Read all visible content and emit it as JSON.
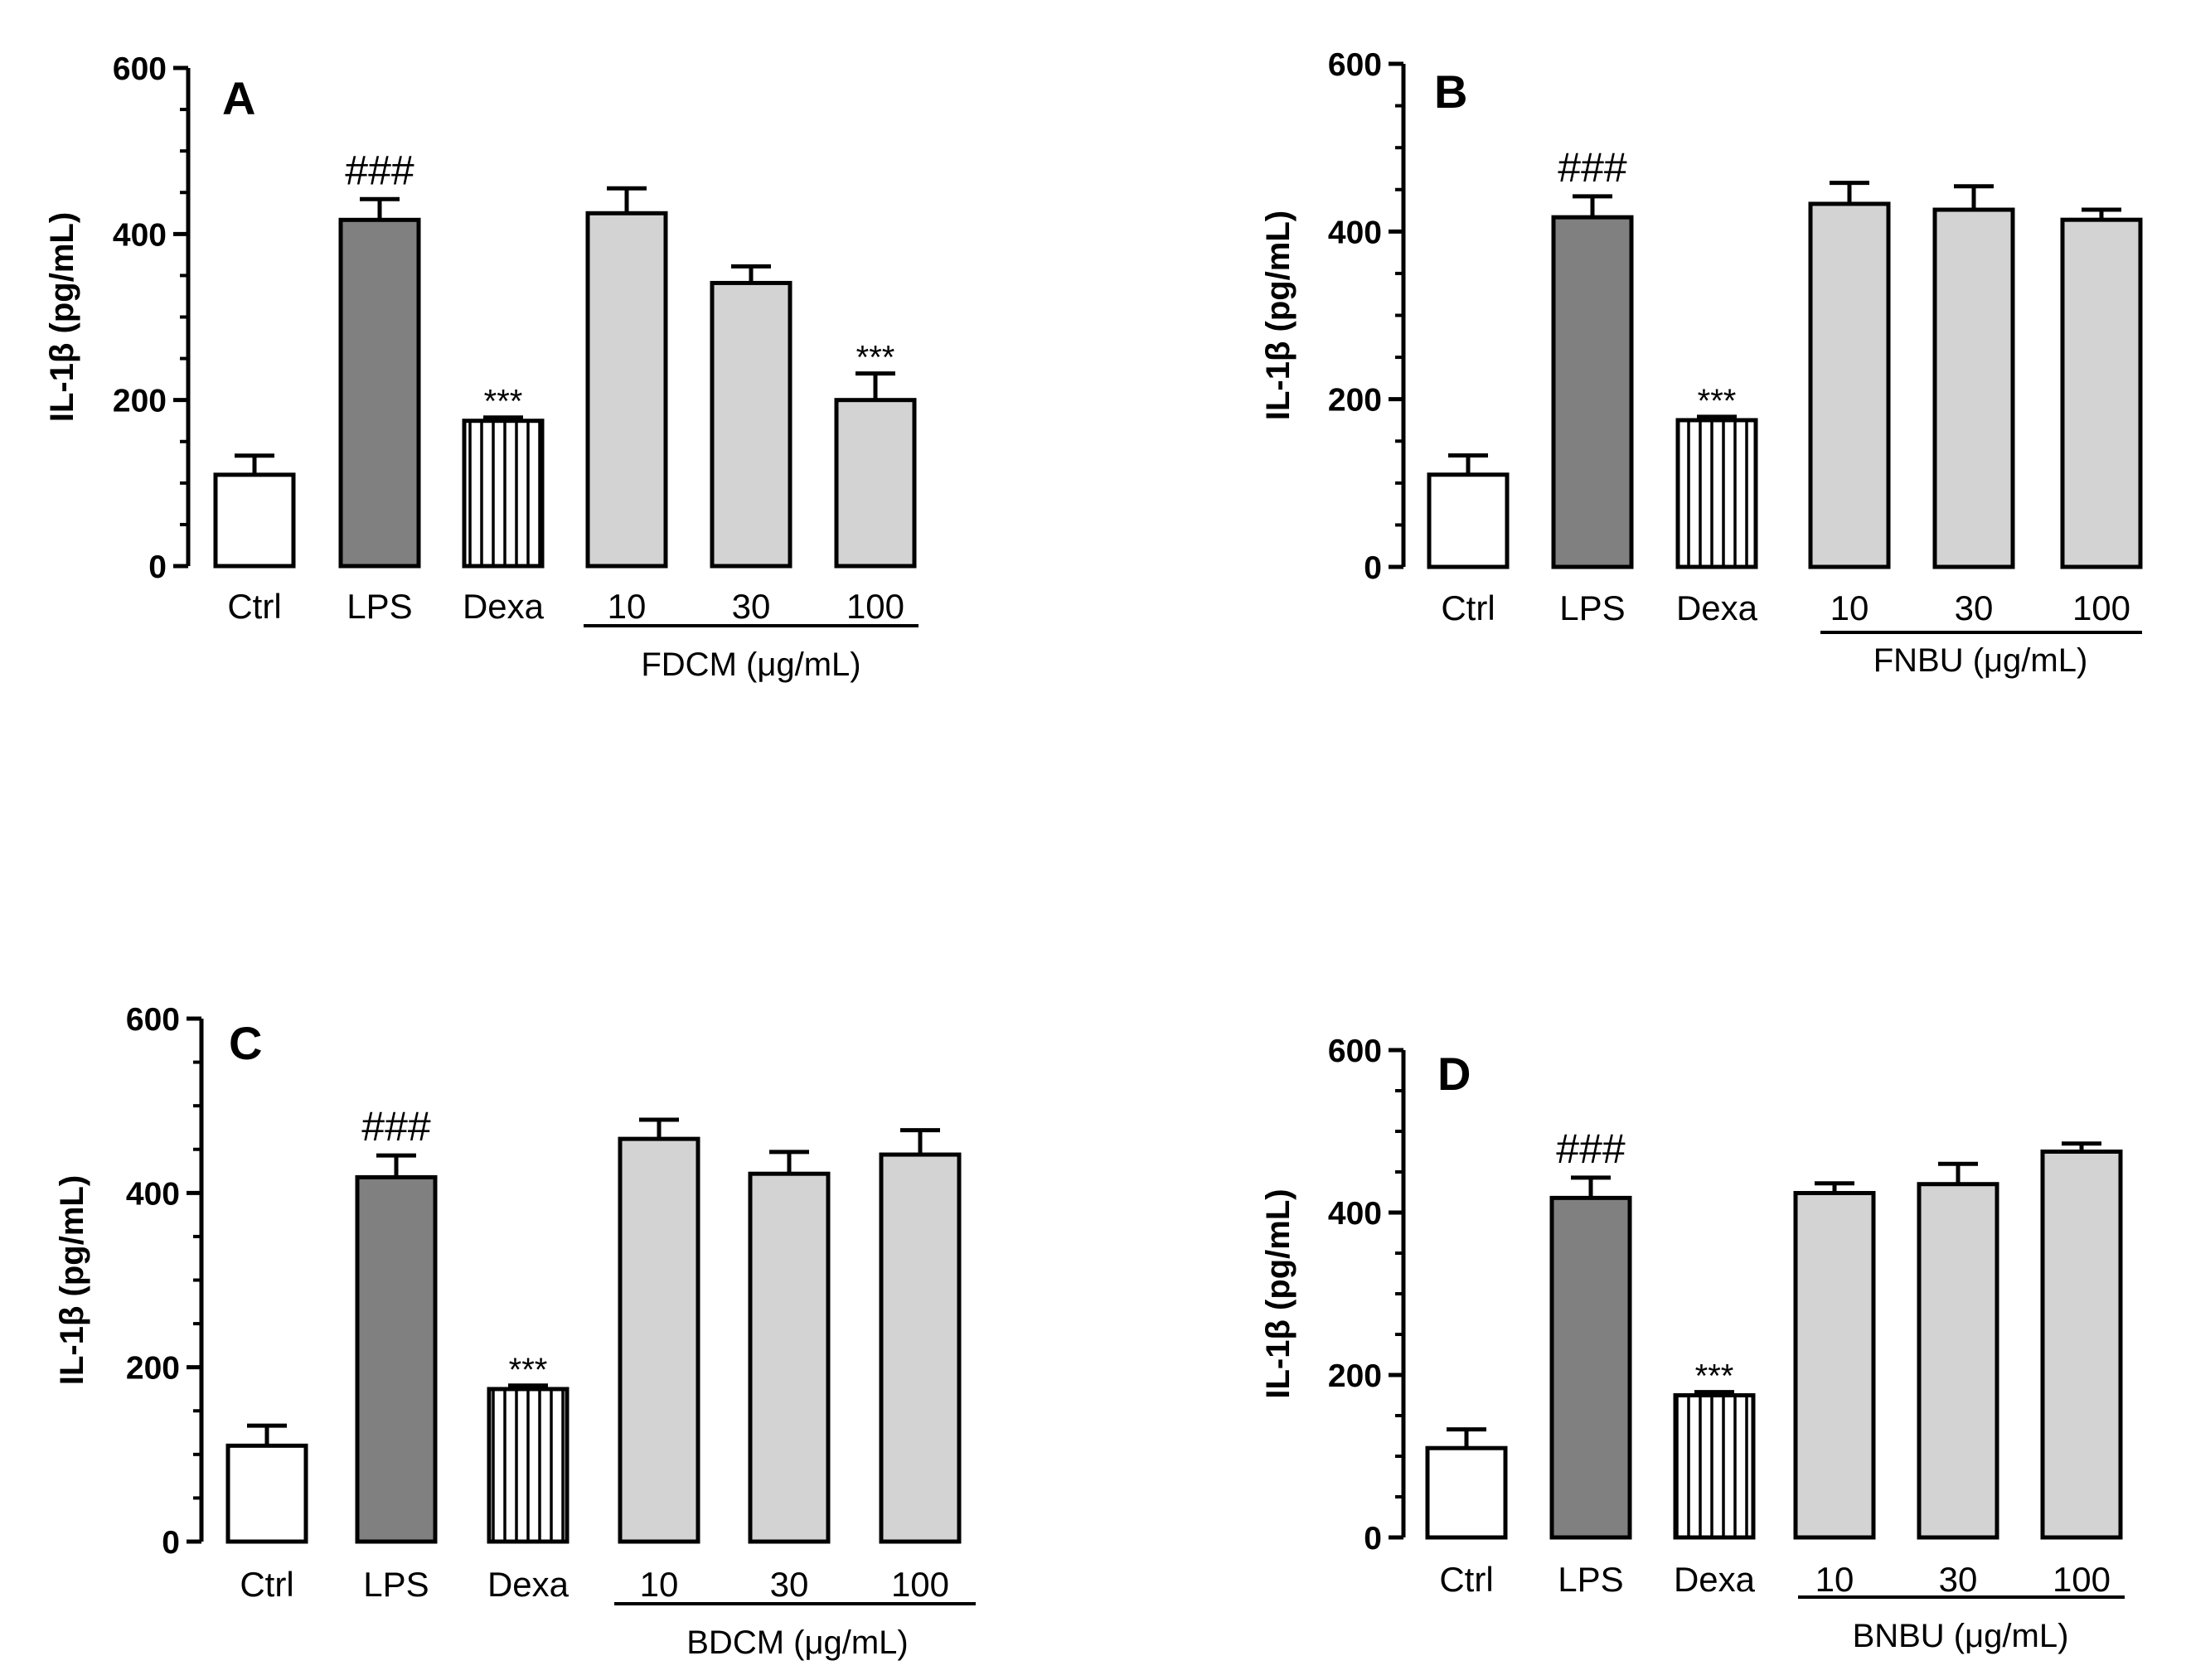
{
  "figure": {
    "colors": {
      "axis": "#000000",
      "ctrl_fill": "#ffffff",
      "lps_fill": "#808080",
      "dexa_fill": "#ffffff",
      "dexa_hatch": "#000000",
      "extract_fill": "#d3d3d3",
      "bar_stroke": "#000000"
    }
  },
  "chart_data": [
    {
      "type": "bar",
      "panel": "A",
      "ylabel": "IL-1β (pg/mL)",
      "ylim": [
        0,
        600
      ],
      "yticks": [
        "0",
        "200",
        "400",
        "600"
      ],
      "group_label": "FDCM (μg/mL)",
      "categories": [
        "Ctrl",
        "LPS",
        "Dexa",
        "10",
        "30",
        "100"
      ],
      "values": [
        110,
        417,
        175,
        425,
        341,
        200
      ],
      "errors": [
        23,
        25,
        4,
        30,
        20,
        32
      ],
      "significance": [
        "",
        "###",
        "***",
        "",
        "",
        "***"
      ]
    },
    {
      "type": "bar",
      "panel": "B",
      "ylabel": "IL-1β (pg/mL)",
      "ylim": [
        0,
        600
      ],
      "yticks": [
        "0",
        "200",
        "400",
        "600"
      ],
      "group_label": "FNBU (μg/mL)",
      "categories": [
        "Ctrl",
        "LPS",
        "Dexa",
        "10",
        "30",
        "100"
      ],
      "values": [
        110,
        417,
        175,
        433,
        426,
        414
      ],
      "errors": [
        23,
        25,
        4,
        25,
        28,
        12
      ],
      "significance": [
        "",
        "###",
        "***",
        "",
        "",
        ""
      ]
    },
    {
      "type": "bar",
      "panel": "C",
      "ylabel": "IL-1β (pg/mL)",
      "ylim": [
        0,
        600
      ],
      "yticks": [
        "0",
        "200",
        "400",
        "600"
      ],
      "group_label": "BDCM (μg/mL)",
      "categories": [
        "Ctrl",
        "LPS",
        "Dexa",
        "10",
        "30",
        "100"
      ],
      "values": [
        110,
        418,
        175,
        462,
        422,
        444
      ],
      "errors": [
        23,
        25,
        4,
        22,
        25,
        28
      ],
      "significance": [
        "",
        "###",
        "***",
        "",
        "",
        ""
      ]
    },
    {
      "type": "bar",
      "panel": "D",
      "ylabel": "IL-1β (pg/mL)",
      "ylim": [
        0,
        600
      ],
      "yticks": [
        "0",
        "200",
        "400",
        "600"
      ],
      "group_label": "BNBU (μg/mL)",
      "categories": [
        "Ctrl",
        "LPS",
        "Dexa",
        "10",
        "30",
        "100"
      ],
      "values": [
        110,
        418,
        175,
        424,
        435,
        475
      ],
      "errors": [
        23,
        25,
        4,
        12,
        25,
        10
      ],
      "significance": [
        "",
        "###",
        "***",
        "",
        "",
        ""
      ]
    }
  ]
}
